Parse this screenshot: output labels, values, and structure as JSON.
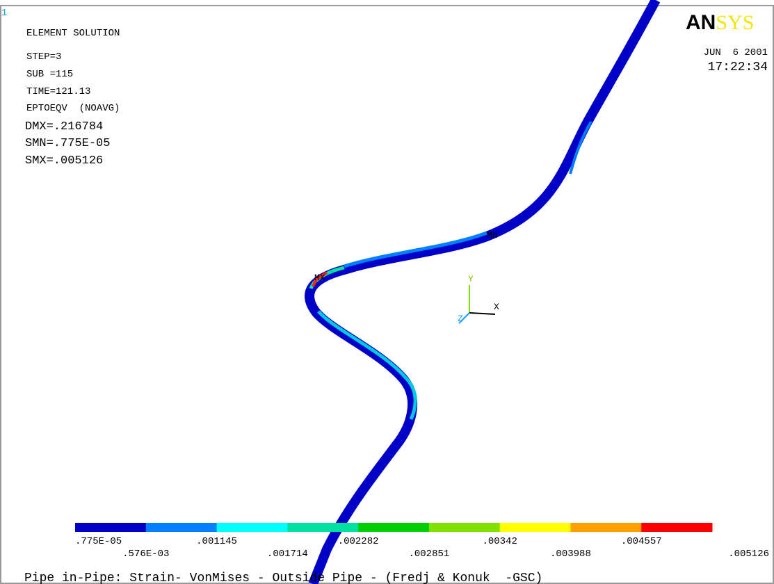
{
  "window_number": "1",
  "header": {
    "title": "ELEMENT SOLUTION",
    "lines": [
      "STEP=3",
      "SUB =115",
      "TIME=121.13",
      "EPTOEQV  (NOAVG)"
    ],
    "stats": [
      "DMX=.216784",
      "SMN=.775E-05",
      "SMX=.005126"
    ]
  },
  "logo": {
    "dark": "AN",
    "light": "SYS"
  },
  "date": "JUN  6 2001",
  "time": "17:22:34",
  "markers": {
    "min": "MN",
    "max": "MX"
  },
  "triad": {
    "x": "X",
    "y": "Y",
    "z": "Z"
  },
  "legend": {
    "colors": [
      "#0000c8",
      "#0080ff",
      "#00ffff",
      "#00e0a0",
      "#00d000",
      "#80e000",
      "#ffff00",
      "#ffa000",
      "#ff0000"
    ],
    "labels": [
      ".775E-05",
      ".576E-03",
      ".001145",
      ".001714",
      ".002282",
      ".002851",
      ".00342",
      ".003988",
      ".004557",
      ".005126"
    ]
  },
  "footer": "Pipe in-Pipe: Strain- VonMises - Outside Pipe - (Fredj & Konuk  -GSC)"
}
